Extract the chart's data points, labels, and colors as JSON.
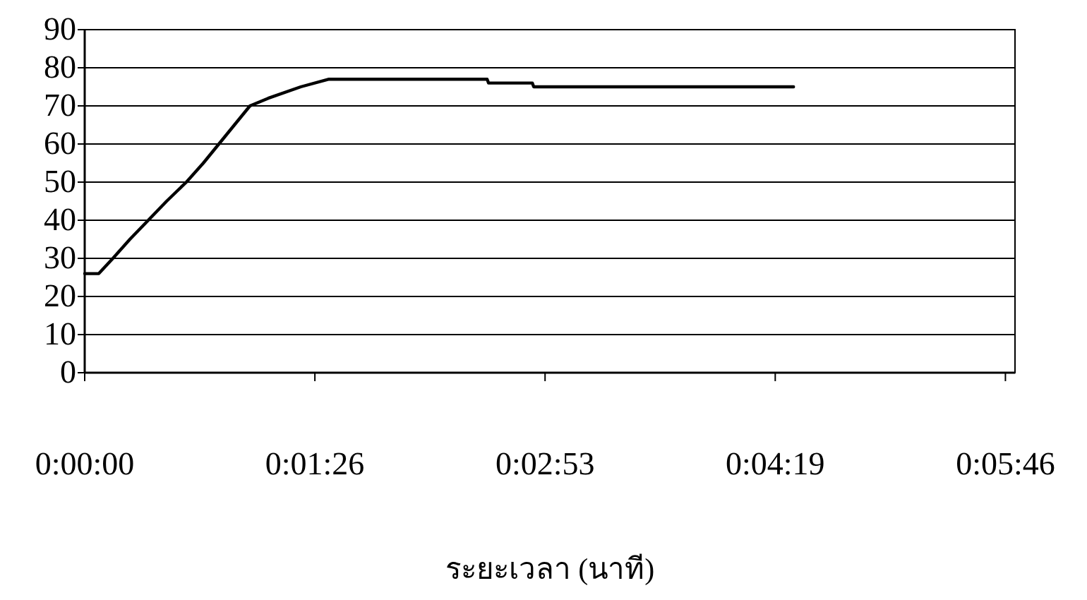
{
  "chart_data": {
    "type": "line",
    "xlabel": "ระยะเวลา (นาที)",
    "x": [
      0,
      0.00147,
      0.00294,
      0.00471,
      0.00663,
      0.00854,
      0.0106,
      0.01237,
      0.01399,
      0.01561,
      0.01723,
      0.01914,
      0.02253,
      0.02547,
      0.04196,
      0.04211,
      0.04667,
      0.04682,
      0.07391
    ],
    "series": [
      {
        "color": "#000000",
        "values": [
          26,
          26,
          30,
          35,
          40,
          45,
          50,
          55,
          60,
          65,
          70,
          72,
          75,
          77,
          77,
          76,
          76,
          75,
          75
        ]
      }
    ],
    "xlim": [
      0,
      0.097
    ],
    "xticks": [
      {
        "value": 0,
        "label": "0:00:00"
      },
      {
        "value": 0.024,
        "label": "0:01:26"
      },
      {
        "value": 0.048,
        "label": "0:02:53"
      },
      {
        "value": 0.072,
        "label": "0:04:19"
      },
      {
        "value": 0.096,
        "label": "0:05:46"
      }
    ],
    "ylim": [
      0,
      90
    ],
    "yticks": [
      0,
      10,
      20,
      30,
      40,
      50,
      60,
      70,
      80,
      90
    ],
    "grid": "y",
    "marker": "none",
    "line_style": "solid"
  }
}
